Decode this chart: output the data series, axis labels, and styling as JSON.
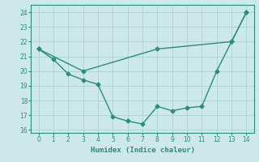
{
  "xlabel": "Humidex (Indice chaleur)",
  "xlim": [
    -0.5,
    14.5
  ],
  "ylim": [
    15.8,
    24.5
  ],
  "yticks": [
    16,
    17,
    18,
    19,
    20,
    21,
    22,
    23,
    24
  ],
  "xticks": [
    0,
    1,
    2,
    3,
    4,
    5,
    6,
    7,
    8,
    9,
    10,
    11,
    12,
    13,
    14
  ],
  "line1_x": [
    0,
    1,
    2,
    3,
    4,
    5,
    6,
    7,
    8,
    9,
    10,
    11,
    12,
    13,
    14
  ],
  "line1_y": [
    21.5,
    20.8,
    19.8,
    19.4,
    19.1,
    16.9,
    16.6,
    16.4,
    17.6,
    17.3,
    17.5,
    17.6,
    20.0,
    22.0,
    24.0
  ],
  "line2_x": [
    0,
    3,
    8,
    13,
    14
  ],
  "line2_y": [
    21.5,
    20.0,
    21.5,
    22.0,
    24.0
  ],
  "line_color": "#2e8b7a",
  "bg_color": "#cce8e8",
  "grid_color": "#aed4d4",
  "marker": "D",
  "marker_size": 2.5,
  "line_width": 1.0
}
